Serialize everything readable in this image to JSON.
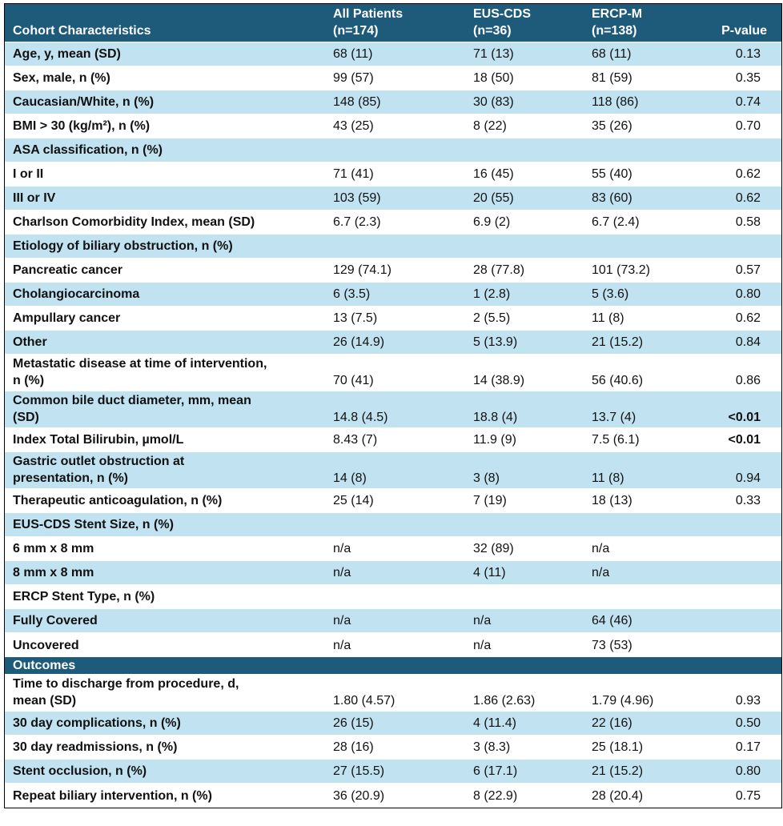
{
  "header": {
    "col1": "Cohort Characteristics",
    "col2": "All Patients\n(n=174)",
    "col3": "EUS-CDS\n(n=36)",
    "col4": "ERCP-M\n(n=138)",
    "col5": "P-value"
  },
  "rows": [
    {
      "label": "Age, y, mean (SD)",
      "all": "68 (11)",
      "eus": "71 (13)",
      "ercp": "68 (11)",
      "p": "0.13"
    },
    {
      "label": "Sex, male, n (%)",
      "all": "99 (57)",
      "eus": "18 (50)",
      "ercp": "81 (59)",
      "p": "0.35"
    },
    {
      "label": "Caucasian/White, n (%)",
      "all": "148 (85)",
      "eus": "30 (83)",
      "ercp": "118 (86)",
      "p": "0.74"
    },
    {
      "label": "BMI > 30 (kg/m²), n (%)",
      "all": "43 (25)",
      "eus": "8 (22)",
      "ercp": "35 (26)",
      "p": "0.70"
    },
    {
      "label": "ASA classification, n (%)",
      "all": "",
      "eus": "",
      "ercp": "",
      "p": ""
    },
    {
      "label": "I or II",
      "all": "71 (41)",
      "eus": "16 (45)",
      "ercp": "55 (40)",
      "p": "0.62"
    },
    {
      "label": "III or IV",
      "all": "103 (59)",
      "eus": "20 (55)",
      "ercp": "83 (60)",
      "p": "0.62"
    },
    {
      "label": "Charlson Comorbidity Index, mean (SD)",
      "all": "6.7 (2.3)",
      "eus": "6.9 (2)",
      "ercp": "6.7 (2.4)",
      "p": "0.58"
    },
    {
      "label": "Etiology of biliary obstruction, n (%)",
      "all": "",
      "eus": "",
      "ercp": "",
      "p": ""
    },
    {
      "label": "Pancreatic cancer",
      "all": "129 (74.1)",
      "eus": "28 (77.8)",
      "ercp": "101 (73.2)",
      "p": "0.57"
    },
    {
      "label": "Cholangiocarcinoma",
      "all": "6 (3.5)",
      "eus": "1 (2.8)",
      "ercp": "5 (3.6)",
      "p": "0.80"
    },
    {
      "label": "Ampullary cancer",
      "all": "13 (7.5)",
      "eus": "2 (5.5)",
      "ercp": "11 (8)",
      "p": "0.62"
    },
    {
      "label": "Other",
      "all": "26 (14.9)",
      "eus": "5 (13.9)",
      "ercp": "21 (15.2)",
      "p": "0.84"
    },
    {
      "label": "Metastatic disease at time of intervention,\nn (%)",
      "all": "70 (41)",
      "eus": "14 (38.9)",
      "ercp": "56 (40.6)",
      "p": "0.86"
    },
    {
      "label": "Common bile duct diameter, mm, mean\n(SD)",
      "all": "14.8 (4.5)",
      "eus": "18.8 (4)",
      "ercp": "13.7 (4)",
      "p": "<0.01"
    },
    {
      "label": "Index Total Bilirubin, µmol/L",
      "all": "8.43 (7)",
      "eus": "11.9 (9)",
      "ercp": "7.5 (6.1)",
      "p": "<0.01"
    },
    {
      "label": "Gastric outlet obstruction at\npresentation, n (%)",
      "all": "14 (8)",
      "eus": "3 (8)",
      "ercp": "11 (8)",
      "p": "0.94"
    },
    {
      "label": "Therapeutic anticoagulation, n (%)",
      "all": "25 (14)",
      "eus": "7 (19)",
      "ercp": "18 (13)",
      "p": "0.33"
    },
    {
      "label": "EUS-CDS Stent Size, n (%)",
      "all": "",
      "eus": "",
      "ercp": "",
      "p": ""
    },
    {
      "label": "6 mm x 8 mm",
      "all": "n/a",
      "eus": "32 (89)",
      "ercp": "n/a",
      "p": ""
    },
    {
      "label": "8 mm x 8 mm",
      "all": "n/a",
      "eus": "4 (11)",
      "ercp": "n/a",
      "p": ""
    },
    {
      "label": "ERCP Stent Type, n (%)",
      "all": "",
      "eus": "",
      "ercp": "",
      "p": ""
    },
    {
      "label": "Fully Covered",
      "all": "n/a",
      "eus": "n/a",
      "ercp": "64 (46)",
      "p": ""
    },
    {
      "label": "Uncovered",
      "all": "n/a",
      "eus": "n/a",
      "ercp": "73 (53)",
      "p": ""
    }
  ],
  "outcomes_header": "Outcomes",
  "outcomes": [
    {
      "label": "Time to discharge from procedure, d,\nmean (SD)",
      "all": "1.80 (4.57)",
      "eus": "1.86 (2.63)",
      "ercp": "1.79 (4.96)",
      "p": "0.93"
    },
    {
      "label": "30 day complications, n (%)",
      "all": "26 (15)",
      "eus": "4 (11.4)",
      "ercp": "22 (16)",
      "p": "0.50"
    },
    {
      "label": "30 day readmissions, n (%)",
      "all": "28 (16)",
      "eus": "3 (8.3)",
      "ercp": "25 (18.1)",
      "p": "0.17"
    },
    {
      "label": "Stent occlusion, n (%)",
      "all": "27 (15.5)",
      "eus": "6 (17.1)",
      "ercp": "21 (15.2)",
      "p": "0.80"
    },
    {
      "label": "Repeat biliary intervention, n (%)",
      "all": "36 (20.9)",
      "eus": "8 (22.9)",
      "ercp": "28 (20.4)",
      "p": "0.75"
    }
  ],
  "colors": {
    "header_bg": "#1e5a7a",
    "stripe_light": "#c1e2f0",
    "stripe_white": "#ffffff"
  }
}
